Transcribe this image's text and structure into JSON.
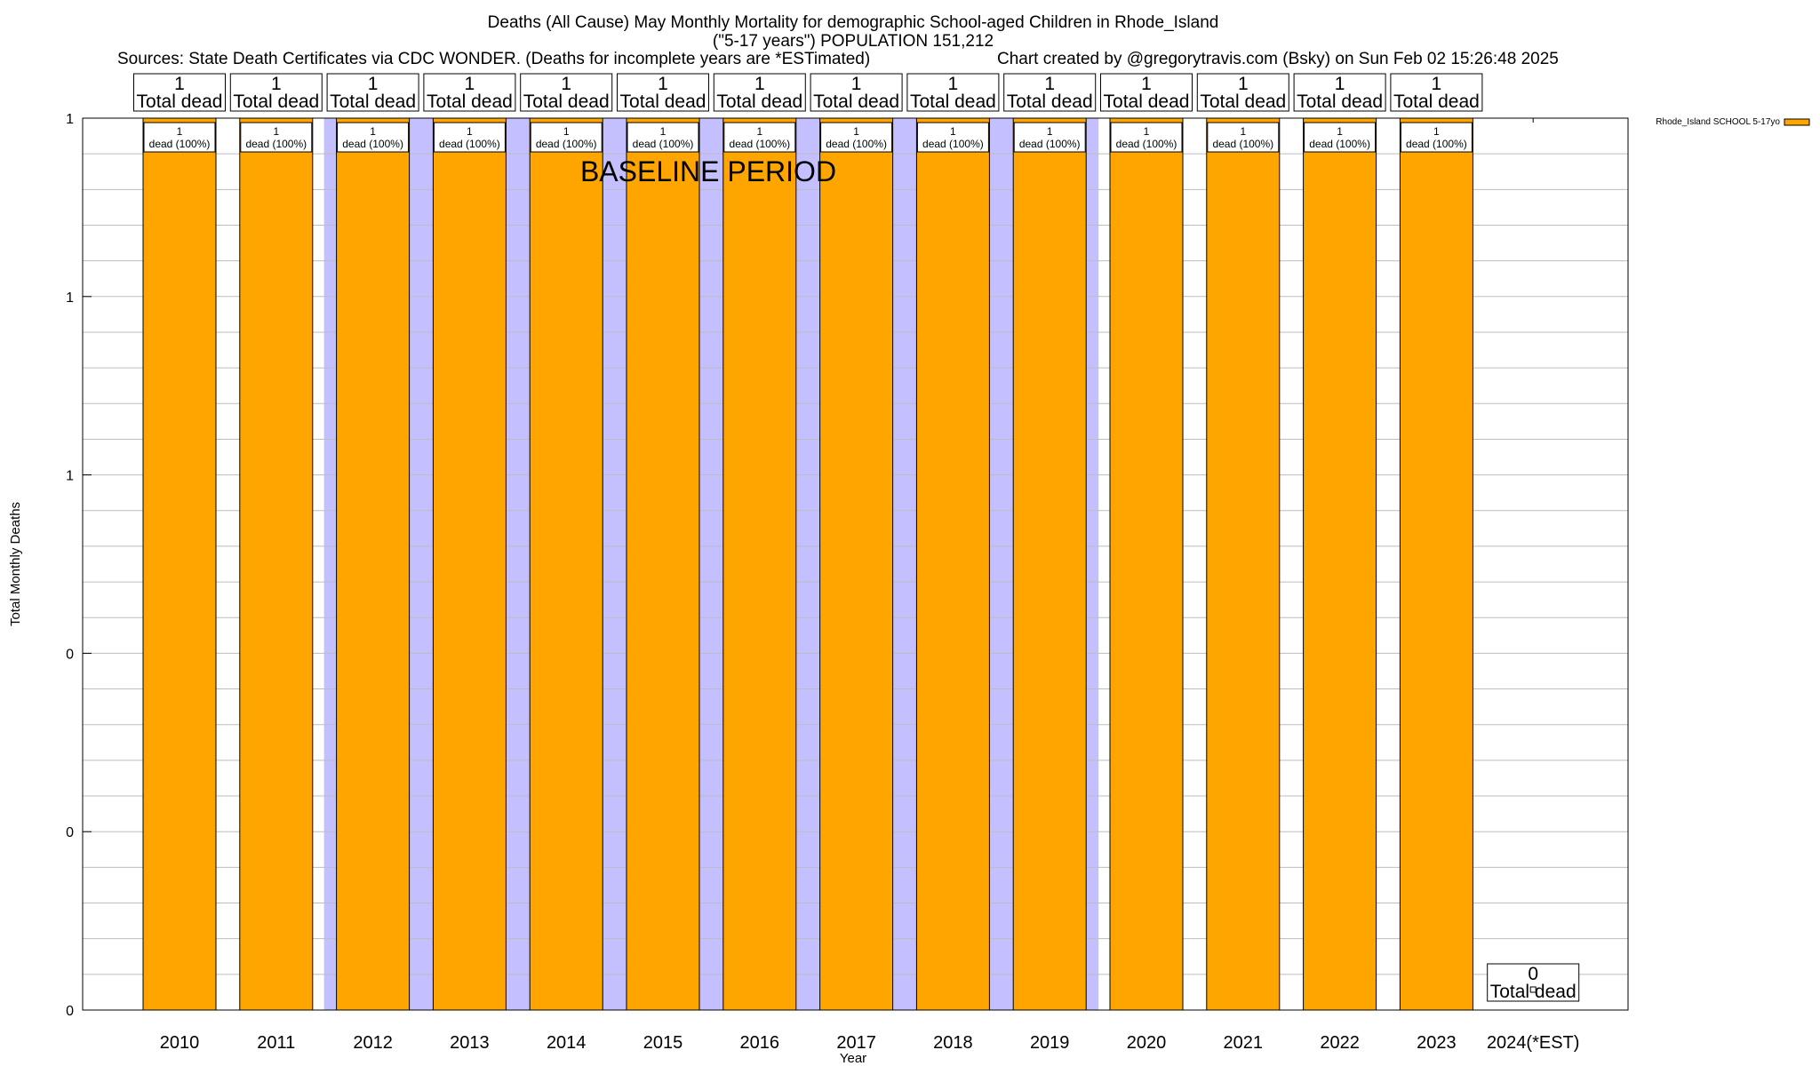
{
  "chart_data": {
    "type": "bar",
    "title_lines": [
      "Deaths (All Cause) May Monthly Mortality for demographic School-aged Children in Rhode_Island",
      "(\"5-17 years\") POPULATION 151,212"
    ],
    "sources_text": "Sources: State Death Certificates via CDC WONDER. (Deaths for incomplete years are *ESTimated)",
    "credit_text": "Chart created by @gregorytravis.com (Bsky) on Sun Feb 02 15:26:48 2025",
    "xlabel": "Year",
    "ylabel": "Total Monthly Deaths",
    "ylim": [
      0,
      1
    ],
    "y_tick_values": [
      0,
      0.2,
      0.4,
      0.6,
      0.8,
      1.0
    ],
    "y_tick_labels": [
      "0",
      "0",
      "0",
      "1",
      "1",
      "1"
    ],
    "categories": [
      "2010",
      "2011",
      "2012",
      "2013",
      "2014",
      "2015",
      "2016",
      "2017",
      "2018",
      "2019",
      "2020",
      "2021",
      "2022",
      "2023",
      "2024(*EST)"
    ],
    "series": [
      {
        "name": "Rhode_Island SCHOOL 5-17yo",
        "color": "#ffa500",
        "values": [
          1,
          1,
          1,
          1,
          1,
          1,
          1,
          1,
          1,
          1,
          1,
          1,
          1,
          1,
          0
        ]
      }
    ],
    "total_labels": [
      {
        "value": "1",
        "text": "Total dead"
      },
      {
        "value": "1",
        "text": "Total dead"
      },
      {
        "value": "1",
        "text": "Total dead"
      },
      {
        "value": "1",
        "text": "Total dead"
      },
      {
        "value": "1",
        "text": "Total dead"
      },
      {
        "value": "1",
        "text": "Total dead"
      },
      {
        "value": "1",
        "text": "Total dead"
      },
      {
        "value": "1",
        "text": "Total dead"
      },
      {
        "value": "1",
        "text": "Total dead"
      },
      {
        "value": "1",
        "text": "Total dead"
      },
      {
        "value": "1",
        "text": "Total dead"
      },
      {
        "value": "1",
        "text": "Total dead"
      },
      {
        "value": "1",
        "text": "Total dead"
      },
      {
        "value": "1",
        "text": "Total dead"
      },
      {
        "value": "0",
        "text": "Total dead"
      }
    ],
    "segment_labels": [
      {
        "value": "1",
        "text": "dead (100%)"
      },
      {
        "value": "1",
        "text": "dead (100%)"
      },
      {
        "value": "1",
        "text": "dead (100%)"
      },
      {
        "value": "1",
        "text": "dead (100%)"
      },
      {
        "value": "1",
        "text": "dead (100%)"
      },
      {
        "value": "1",
        "text": "dead (100%)"
      },
      {
        "value": "1",
        "text": "dead (100%)"
      },
      {
        "value": "1",
        "text": "dead (100%)"
      },
      {
        "value": "1",
        "text": "dead (100%)"
      },
      {
        "value": "1",
        "text": "dead (100%)"
      },
      {
        "value": "1",
        "text": "dead (100%)"
      },
      {
        "value": "1",
        "text": "dead (100%)"
      },
      {
        "value": "1",
        "text": "dead (100%)"
      },
      {
        "value": "1",
        "text": "dead (100%)"
      },
      null
    ],
    "baseline": {
      "label": "BASELINE PERIOD",
      "from": "2012",
      "to": "2019",
      "color": "#c4c0ff"
    },
    "legend": {
      "position": "top-right",
      "entries": [
        "Rhode_Island SCHOOL 5-17yo"
      ]
    },
    "grid": true
  }
}
